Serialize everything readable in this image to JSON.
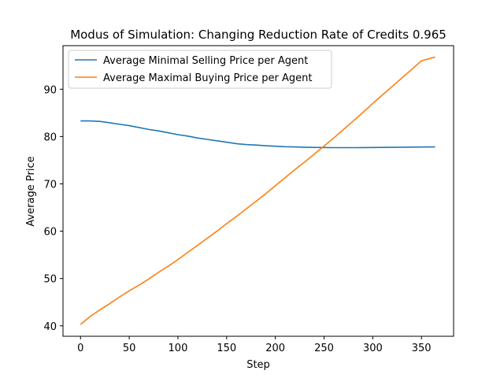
{
  "chart_data": {
    "type": "line",
    "title": "Modus of Simulation: Changing Reduction Rate of Credits 0.965",
    "xlabel": "Step",
    "ylabel": "Average Price",
    "xlim": [
      -18,
      383
    ],
    "ylim": [
      37.8,
      99.2
    ],
    "xticks": [
      0,
      50,
      100,
      150,
      200,
      250,
      300,
      350
    ],
    "yticks": [
      40,
      50,
      60,
      70,
      80,
      90
    ],
    "grid": false,
    "legend_position": "upper-left",
    "series": [
      {
        "name": "Average Minimal Selling Price per Agent",
        "color": "#1f77b4",
        "x": [
          0,
          10,
          20,
          30,
          40,
          50,
          60,
          70,
          80,
          90,
          100,
          110,
          120,
          130,
          140,
          150,
          160,
          170,
          180,
          190,
          200,
          210,
          220,
          230,
          240,
          250,
          260,
          270,
          280,
          290,
          300,
          310,
          320,
          330,
          340,
          350,
          364
        ],
        "y": [
          83.3,
          83.3,
          83.2,
          82.9,
          82.6,
          82.3,
          81.9,
          81.5,
          81.2,
          80.8,
          80.4,
          80.1,
          79.7,
          79.4,
          79.1,
          78.8,
          78.5,
          78.3,
          78.2,
          78.05,
          77.95,
          77.85,
          77.8,
          77.75,
          77.7,
          77.68,
          77.65,
          77.65,
          77.65,
          77.67,
          77.68,
          77.7,
          77.72,
          77.74,
          77.76,
          77.78,
          77.8
        ]
      },
      {
        "name": "Average Maximal Buying Price per Agent",
        "color": "#ff7f0e",
        "x": [
          0,
          10,
          20,
          30,
          40,
          50,
          60,
          70,
          80,
          90,
          100,
          110,
          120,
          130,
          140,
          150,
          160,
          170,
          180,
          190,
          200,
          210,
          220,
          230,
          240,
          250,
          260,
          270,
          280,
          290,
          300,
          310,
          320,
          330,
          340,
          350,
          364
        ],
        "y": [
          40.3,
          42.0,
          43.4,
          44.7,
          46.1,
          47.4,
          48.6,
          49.9,
          51.3,
          52.6,
          54.0,
          55.5,
          57.0,
          58.5,
          60.0,
          61.6,
          63.1,
          64.7,
          66.3,
          67.9,
          69.6,
          71.3,
          73.0,
          74.6,
          76.3,
          78.0,
          79.7,
          81.5,
          83.3,
          85.1,
          87.0,
          88.8,
          90.6,
          92.4,
          94.2,
          96.0,
          96.8
        ]
      }
    ]
  }
}
